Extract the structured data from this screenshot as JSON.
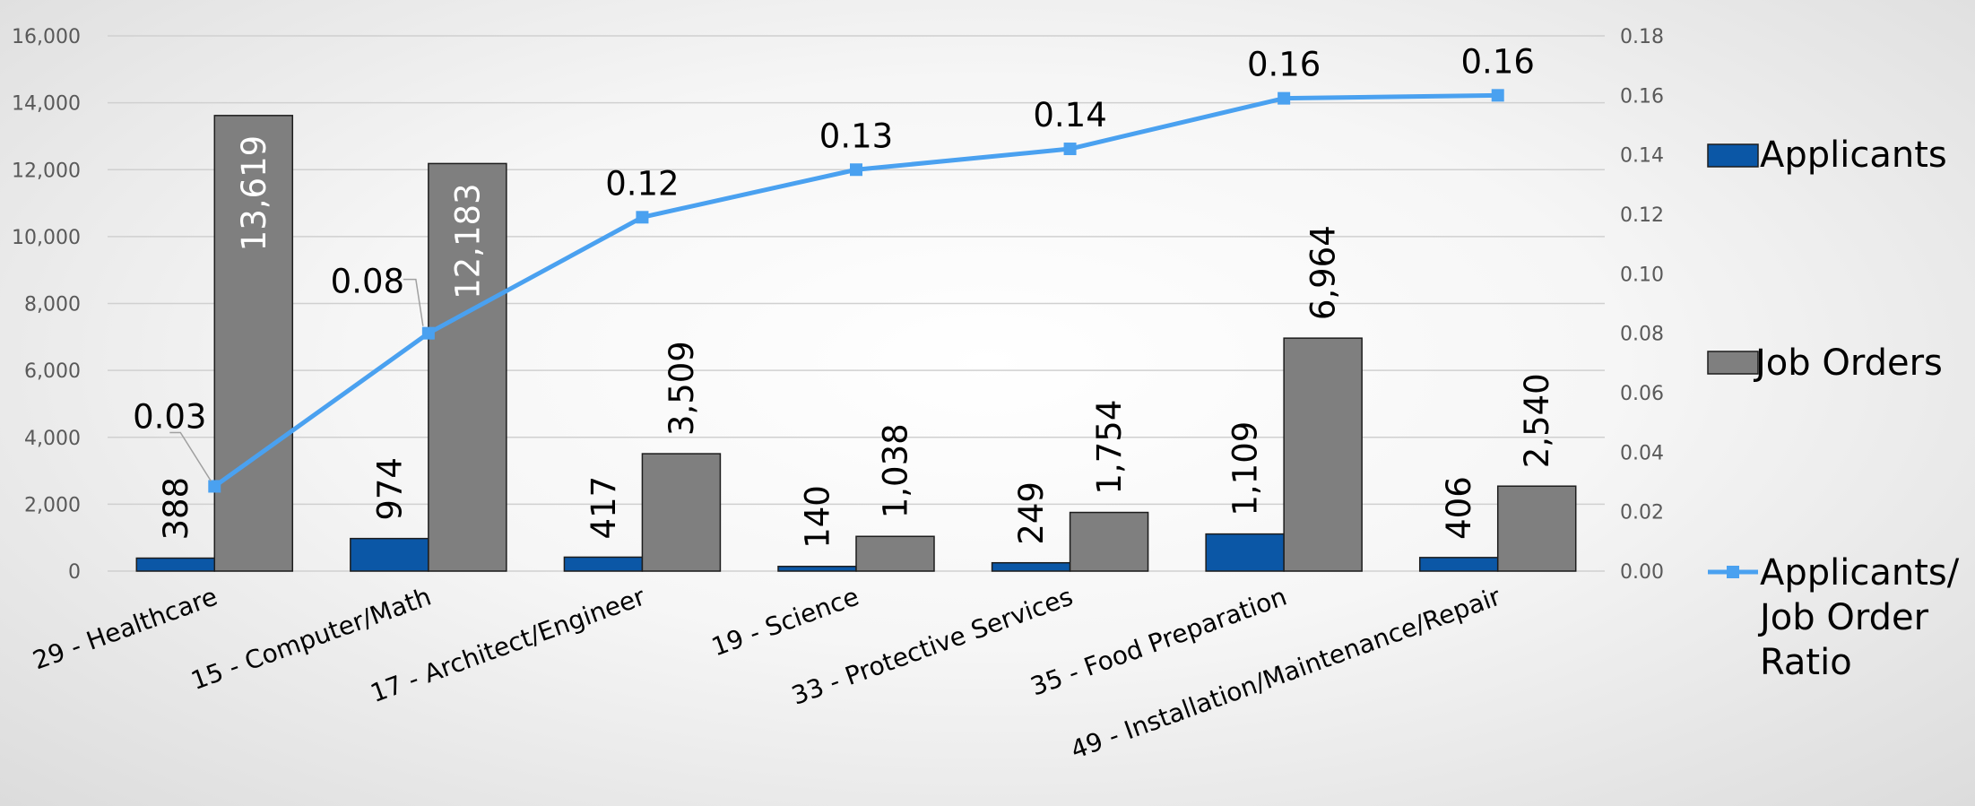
{
  "chart_data": {
    "type": "bar",
    "title": "",
    "categories": [
      "29 - Healthcare",
      "15 - Computer/Math",
      "17 - Architect/Engineer",
      "19 - Science",
      "33 - Protective Services",
      "35 - Food Preparation",
      "49 - Installation/Maintenance/Repair"
    ],
    "series": [
      {
        "name": "Applicants",
        "type": "bar",
        "axis": "primary",
        "values": [
          388,
          974,
          417,
          140,
          249,
          1109,
          406
        ],
        "labels": [
          "388",
          "974",
          "417",
          "140",
          "249",
          "1,109",
          "406"
        ],
        "color": "#0b57a6"
      },
      {
        "name": "Job Orders",
        "type": "bar",
        "axis": "primary",
        "values": [
          13619,
          12183,
          3509,
          1038,
          1754,
          6964,
          2540
        ],
        "labels": [
          "13,619",
          "12,183",
          "3,509",
          "1,038",
          "1,754",
          "6,964",
          "2,540"
        ],
        "color": "#7f7f7f"
      },
      {
        "name": "Applicants/ Job Order Ratio",
        "legend_lines": [
          "Applicants/",
          "Job Order",
          "Ratio"
        ],
        "type": "line",
        "axis": "secondary",
        "values": [
          0.0285,
          0.08,
          0.119,
          0.135,
          0.142,
          0.159,
          0.16
        ],
        "labels": [
          "0.03",
          "0.08",
          "0.12",
          "0.13",
          "0.14",
          "0.16",
          "0.16"
        ],
        "color": "#4aa1f0"
      }
    ],
    "y_ticks": [
      "0",
      "2,000",
      "4,000",
      "6,000",
      "8,000",
      "10,000",
      "12,000",
      "14,000",
      "16,000"
    ],
    "y2_ticks": [
      "0.00",
      "0.02",
      "0.04",
      "0.06",
      "0.08",
      "0.10",
      "0.12",
      "0.14",
      "0.16",
      "0.18"
    ],
    "ylim": [
      0,
      16000
    ],
    "y2lim": [
      0,
      0.18
    ],
    "grid": true,
    "legend": "right"
  }
}
